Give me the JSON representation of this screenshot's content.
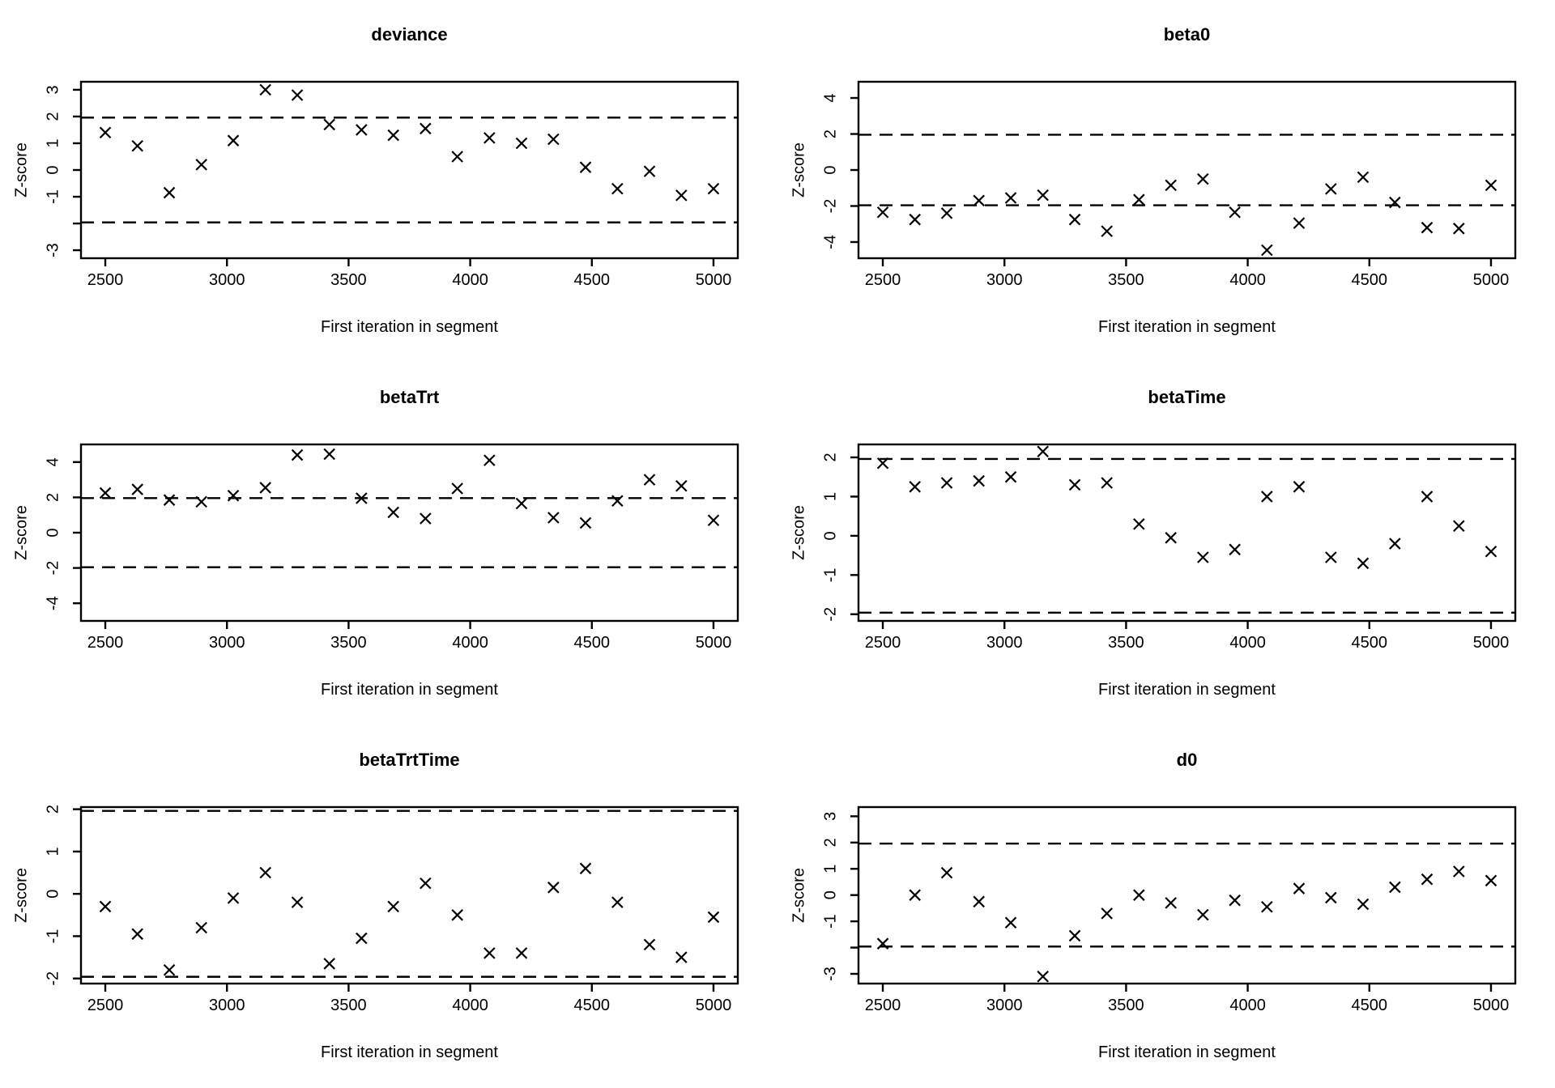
{
  "figure": {
    "kind": "geweke-convergence-diagnostic-grid",
    "background_color": "#ffffff",
    "foreground_color": "#000000",
    "layout": {
      "rows": 3,
      "cols": 2
    },
    "marker": "x-cross-icon",
    "threshold_lines": [
      -1.96,
      1.96
    ]
  },
  "shared_axis": {
    "xlabel": "First iteration in segment",
    "ylabel": "Z-score",
    "xticks": [
      2500,
      3000,
      3500,
      4000,
      4500,
      5000
    ],
    "x_range": [
      2400,
      5100
    ]
  },
  "chart_data": [
    {
      "type": "scatter",
      "title": "deviance",
      "xlabel": "First iteration in segment",
      "ylabel": "Z-score",
      "ylim": [
        -3.3,
        3.3
      ],
      "yticks": [
        {
          "v": 3,
          "label": "3"
        },
        {
          "v": 2,
          "label": "2"
        },
        {
          "v": 1,
          "label": "1"
        },
        {
          "v": 0,
          "label": "0"
        },
        {
          "v": -1,
          "label": "-1"
        },
        {
          "v": -2,
          "label": ""
        },
        {
          "v": -3,
          "label": "-3"
        }
      ],
      "x": [
        2500,
        2632,
        2763,
        2895,
        3026,
        3158,
        3289,
        3421,
        3553,
        3684,
        3816,
        3947,
        4079,
        4211,
        4342,
        4474,
        4605,
        4737,
        4868,
        5000
      ],
      "z": [
        1.4,
        0.9,
        -0.85,
        0.2,
        1.1,
        3.0,
        2.8,
        1.7,
        1.5,
        1.3,
        1.55,
        0.5,
        1.2,
        1.0,
        1.15,
        0.1,
        -0.7,
        -0.05,
        -0.95,
        -0.7
      ]
    },
    {
      "type": "scatter",
      "title": "beta0",
      "xlabel": "First iteration in segment",
      "ylabel": "Z-score",
      "ylim": [
        -4.9,
        4.9
      ],
      "yticks": [
        {
          "v": 4,
          "label": "4"
        },
        {
          "v": 2,
          "label": "2"
        },
        {
          "v": 0,
          "label": "0"
        },
        {
          "v": -2,
          "label": "-2"
        },
        {
          "v": -4,
          "label": "-4"
        }
      ],
      "x": [
        2500,
        2632,
        2763,
        2895,
        3026,
        3158,
        3289,
        3421,
        3553,
        3684,
        3816,
        3947,
        4079,
        4211,
        4342,
        4474,
        4605,
        4737,
        4868,
        5000
      ],
      "z": [
        -2.35,
        -2.75,
        -2.4,
        -1.7,
        -1.55,
        -1.4,
        -2.75,
        -3.4,
        -1.65,
        -0.85,
        -0.5,
        -2.35,
        -4.45,
        -2.95,
        -1.05,
        -0.4,
        -1.8,
        -3.2,
        -3.25,
        -0.85
      ]
    },
    {
      "type": "scatter",
      "title": "betaTrt",
      "xlabel": "First iteration in segment",
      "ylabel": "Z-score",
      "ylim": [
        -5.0,
        5.0
      ],
      "yticks": [
        {
          "v": 4,
          "label": "4"
        },
        {
          "v": 2,
          "label": "2"
        },
        {
          "v": 0,
          "label": "0"
        },
        {
          "v": -2,
          "label": "-2"
        },
        {
          "v": -4,
          "label": "-4"
        }
      ],
      "x": [
        2500,
        2632,
        2763,
        2895,
        3026,
        3158,
        3289,
        3421,
        3553,
        3684,
        3816,
        3947,
        4079,
        4211,
        4342,
        4474,
        4605,
        4737,
        4868,
        5000
      ],
      "z": [
        2.25,
        2.45,
        1.85,
        1.75,
        2.1,
        2.55,
        4.4,
        4.45,
        1.95,
        1.15,
        0.8,
        2.5,
        4.1,
        1.65,
        0.85,
        0.55,
        1.8,
        3.0,
        2.65,
        0.7
      ]
    },
    {
      "type": "scatter",
      "title": "betaTime",
      "xlabel": "First iteration in segment",
      "ylabel": "Z-score",
      "ylim": [
        -2.17,
        2.33
      ],
      "yticks": [
        {
          "v": 2,
          "label": "2"
        },
        {
          "v": 1,
          "label": "1"
        },
        {
          "v": 0,
          "label": "0"
        },
        {
          "v": -1,
          "label": "-1"
        },
        {
          "v": -2,
          "label": "-2"
        }
      ],
      "x": [
        2500,
        2632,
        2763,
        2895,
        3026,
        3158,
        3289,
        3421,
        3553,
        3684,
        3816,
        3947,
        4079,
        4211,
        4342,
        4474,
        4605,
        4737,
        4868,
        5000
      ],
      "z": [
        1.85,
        1.25,
        1.35,
        1.4,
        1.5,
        2.15,
        1.3,
        1.35,
        0.3,
        -0.05,
        -0.55,
        -0.35,
        1.0,
        1.25,
        -0.55,
        -0.7,
        -0.2,
        1.0,
        0.25,
        -0.4
      ]
    },
    {
      "type": "scatter",
      "title": "betaTrtTime",
      "xlabel": "First iteration in segment",
      "ylabel": "Z-score",
      "ylim": [
        -2.12,
        2.05
      ],
      "yticks": [
        {
          "v": 2,
          "label": "2"
        },
        {
          "v": 1,
          "label": "1"
        },
        {
          "v": 0,
          "label": "0"
        },
        {
          "v": -1,
          "label": "-1"
        },
        {
          "v": -2,
          "label": "-2"
        }
      ],
      "x": [
        2500,
        2632,
        2763,
        2895,
        3026,
        3158,
        3289,
        3421,
        3553,
        3684,
        3816,
        3947,
        4079,
        4211,
        4342,
        4474,
        4605,
        4737,
        4868,
        5000
      ],
      "z": [
        -0.3,
        -0.95,
        -1.8,
        -0.8,
        -0.1,
        0.5,
        -0.2,
        -1.65,
        -1.05,
        -0.3,
        0.25,
        -0.5,
        -1.4,
        -1.4,
        0.15,
        0.6,
        -0.2,
        -1.2,
        -1.5,
        -0.55
      ]
    },
    {
      "type": "scatter",
      "title": "d0",
      "xlabel": "First iteration in segment",
      "ylabel": "Z-score",
      "ylim": [
        -3.37,
        3.35
      ],
      "yticks": [
        {
          "v": 3,
          "label": "3"
        },
        {
          "v": 2,
          "label": "2"
        },
        {
          "v": 1,
          "label": "1"
        },
        {
          "v": 0,
          "label": "0"
        },
        {
          "v": -1,
          "label": "-1"
        },
        {
          "v": -2,
          "label": ""
        },
        {
          "v": -3,
          "label": "-3"
        }
      ],
      "x": [
        2500,
        2632,
        2763,
        2895,
        3026,
        3158,
        3289,
        3421,
        3553,
        3684,
        3816,
        3947,
        4079,
        4211,
        4342,
        4474,
        4605,
        4737,
        4868,
        5000
      ],
      "z": [
        -1.85,
        0.0,
        0.85,
        -0.25,
        -1.05,
        -3.1,
        -1.55,
        -0.7,
        0.0,
        -0.3,
        -0.75,
        -0.2,
        -0.45,
        0.25,
        -0.1,
        -0.35,
        0.3,
        0.6,
        0.9,
        0.55
      ]
    }
  ]
}
